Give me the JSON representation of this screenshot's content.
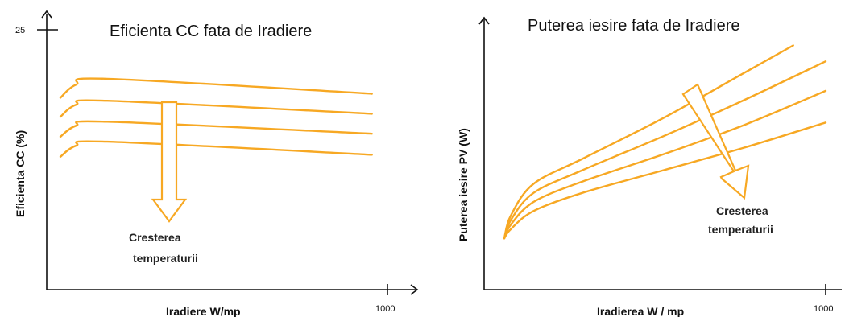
{
  "colors": {
    "curve": "#F7A823",
    "axis": "#111111"
  },
  "chart_data": [
    {
      "type": "line",
      "title": "Eficienta CC fata de Iradiere",
      "xlabel": "Iradiere W/mp",
      "ylabel": "Eficienta CC (%)",
      "x_tick_labels": [
        "1000"
      ],
      "y_tick_labels": [
        "25"
      ],
      "xlim": [
        0,
        1050
      ],
      "ylim": [
        0,
        26
      ],
      "annotation": "Cresterea temperaturii",
      "series": [
        {
          "x": [
            0,
            50,
            150,
            1000
          ],
          "values": [
            19.2,
            20.5,
            21.1,
            19.6
          ]
        },
        {
          "x": [
            0,
            50,
            150,
            1000
          ],
          "values": [
            17.3,
            18.5,
            18.9,
            17.6
          ]
        },
        {
          "x": [
            0,
            50,
            150,
            1000
          ],
          "values": [
            15.3,
            16.4,
            16.8,
            15.6
          ]
        },
        {
          "x": [
            0,
            50,
            150,
            1000
          ],
          "values": [
            13.3,
            14.4,
            14.8,
            13.5
          ]
        }
      ]
    },
    {
      "type": "line",
      "title": "Puterea iesire fata de Iradiere",
      "xlabel": "Iradierea W / mp",
      "ylabel": "Puterea iesire PV (W)",
      "x_tick_labels": [
        "1000"
      ],
      "xlim": [
        0,
        1000
      ],
      "ylim": [
        0,
        100
      ],
      "annotation": "Cresterea temperaturii",
      "series": [
        {
          "x": [
            10,
            30,
            100,
            250,
            500,
            750,
            900
          ],
          "values": [
            12,
            22,
            36,
            47,
            65,
            85,
            97
          ]
        },
        {
          "x": [
            10,
            30,
            100,
            250,
            500,
            750,
            1000
          ],
          "values": [
            12,
            20,
            32,
            42,
            57,
            73,
            90
          ]
        },
        {
          "x": [
            10,
            30,
            100,
            250,
            500,
            750,
            1000
          ],
          "values": [
            12,
            18,
            28,
            37,
            49,
            62,
            77
          ]
        },
        {
          "x": [
            10,
            30,
            100,
            250,
            500,
            750,
            1000
          ],
          "values": [
            12,
            16,
            24,
            32,
            42,
            52,
            63
          ]
        }
      ]
    }
  ]
}
